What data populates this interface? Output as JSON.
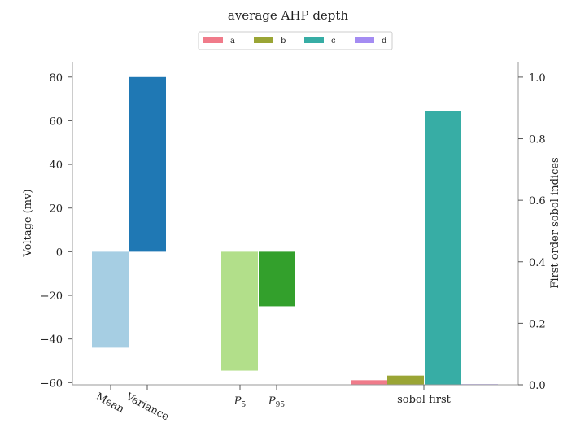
{
  "chart_data": {
    "type": "bar",
    "title": "average AHP depth",
    "ylabel_left": "Voltage (mv)",
    "ylabel_right": "First order sobol indices",
    "ylim_left": [
      -61,
      87
    ],
    "ylim_right": [
      0,
      1.05
    ],
    "yticks_left": [
      "80",
      "60",
      "40",
      "20",
      "0",
      "−20",
      "−40",
      "−60"
    ],
    "yticks_left_values": [
      80,
      60,
      40,
      20,
      0,
      -20,
      -40,
      -60
    ],
    "yticks_right": [
      "1.0",
      "0.8",
      "0.6",
      "0.4",
      "0.2",
      "0.0"
    ],
    "yticks_right_values": [
      1.0,
      0.8,
      0.6,
      0.4,
      0.2,
      0.0
    ],
    "stats": [
      {
        "label": "Mean",
        "value": -44,
        "color": "#a6cee3"
      },
      {
        "label": "Variance",
        "value": 80,
        "color": "#1f78b4"
      },
      {
        "label": "P5",
        "sub": "5",
        "value": -54.5,
        "color": "#b2df8a"
      },
      {
        "label": "P95",
        "sub": "95",
        "value": -25,
        "color": "#33a02c"
      }
    ],
    "sobol_label": "sobol first",
    "legend": {
      "placement": "top-center",
      "entries": [
        {
          "name": "a",
          "color": "#f07b8a",
          "value": 0.015
        },
        {
          "name": "b",
          "color": "#9aa535",
          "value": 0.03
        },
        {
          "name": "c",
          "color": "#37ada5",
          "value": 0.89
        },
        {
          "name": "d",
          "color": "#a48cf2",
          "value": 0.002
        }
      ]
    }
  }
}
